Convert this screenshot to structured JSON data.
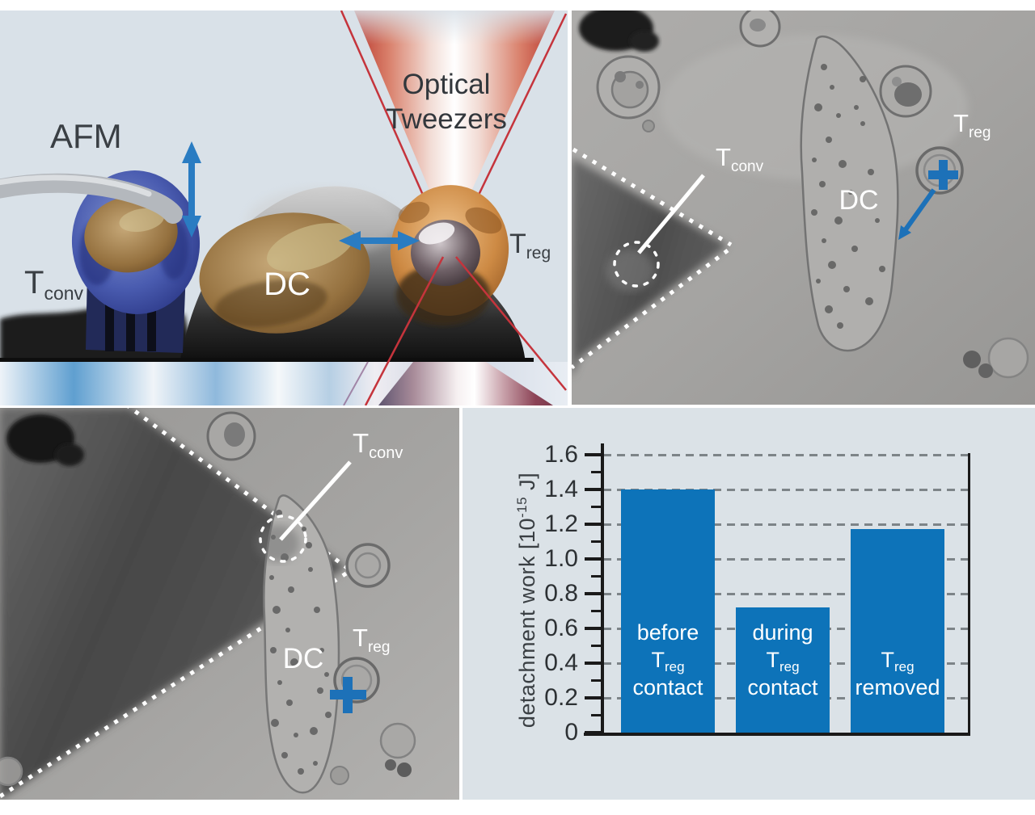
{
  "figure": {
    "background": "#ffffff",
    "panel_background": "#d9e1e8",
    "accent_blue": "#1d71b8"
  },
  "illustration": {
    "afm_label": "AFM",
    "optical_label_line1": "Optical",
    "optical_label_line2": "Tweezers",
    "tconv_main": "T",
    "tconv_sub": "conv",
    "dc_label": "DC",
    "treg_main": "T",
    "treg_sub": "reg"
  },
  "micro_top_right": {
    "tconv_main": "T",
    "tconv_sub": "conv",
    "dc_label": "DC",
    "treg_main": "T",
    "treg_sub": "reg"
  },
  "micro_bottom_left": {
    "tconv_main": "T",
    "tconv_sub": "conv",
    "dc_label": "DC",
    "treg_main": "T",
    "treg_sub": "reg"
  },
  "chart_data": {
    "type": "bar",
    "title": "",
    "ylabel": "detachment work [10^-15 J]",
    "ylabel_prefix": "detachment work [10",
    "ylabel_exponent": "-15",
    "ylabel_suffix": " J]",
    "ylim": [
      0,
      1.6
    ],
    "ytick_labels": [
      "1.6",
      "1.4",
      "1.2",
      "1.0",
      "0.8",
      "0.6",
      "0.4",
      "0.2",
      "0"
    ],
    "ytick_values": [
      1.6,
      1.4,
      1.2,
      1.0,
      0.8,
      0.6,
      0.4,
      0.2,
      0
    ],
    "minor_tick_values": [
      0.1,
      0.3,
      0.5,
      0.7,
      0.9,
      1.1,
      1.3,
      1.5
    ],
    "grid": "dashed-horizontal",
    "legend": "none",
    "bar_color": "#0d73b9",
    "categories": [
      "before Treg contact",
      "during Treg contact",
      "Treg removed"
    ],
    "values": [
      1.4,
      0.72,
      1.17
    ],
    "bars": [
      {
        "value": 1.4,
        "lines": [
          {
            "t": "before"
          },
          {
            "t": "T",
            "sub": "reg"
          },
          {
            "t": "contact"
          }
        ]
      },
      {
        "value": 0.72,
        "lines": [
          {
            "t": "during"
          },
          {
            "t": "T",
            "sub": "reg"
          },
          {
            "t": "contact"
          }
        ]
      },
      {
        "value": 1.17,
        "lines": [
          {
            "t": "T",
            "sub": "reg"
          },
          {
            "t": "removed"
          }
        ]
      }
    ]
  }
}
